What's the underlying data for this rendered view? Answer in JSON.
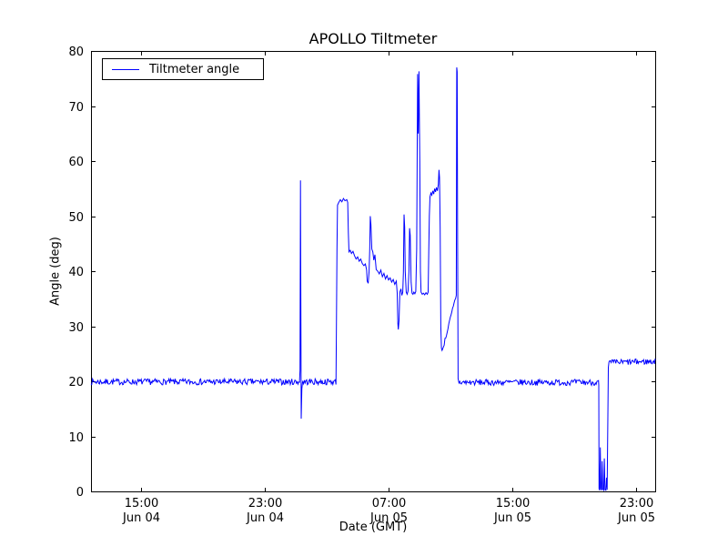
{
  "figure": {
    "background": "#ffffff"
  },
  "chart_data": {
    "type": "line",
    "title": "APOLLO Tiltmeter",
    "xlabel": "Date (GMT)",
    "ylabel": "Angle (deg)",
    "legend": [
      {
        "label": "Tiltmeter angle",
        "color": "#0000ff"
      }
    ],
    "legend_position": "upper left",
    "line_color": "#0000ff",
    "axis_color": "#000000",
    "grid": false,
    "x_unit": "hours since Jun 04 00:00 GMT",
    "xlim": [
      11.75,
      48.25
    ],
    "ylim": [
      0,
      80
    ],
    "yticks": [
      0,
      10,
      20,
      30,
      40,
      50,
      60,
      70,
      80
    ],
    "xticks": [
      {
        "h": 15,
        "line1": "15:00",
        "line2": "Jun 04"
      },
      {
        "h": 23,
        "line1": "23:00",
        "line2": "Jun 04"
      },
      {
        "h": 31,
        "line1": "07:00",
        "line2": "Jun 05"
      },
      {
        "h": 39,
        "line1": "15:00",
        "line2": "Jun 05"
      },
      {
        "h": 47,
        "line1": "23:00",
        "line2": "Jun 05"
      }
    ],
    "noise_seed": 7,
    "segments": [
      {
        "kind": "noisy",
        "x0": 11.75,
        "x1": 25.24,
        "y": 19.9,
        "amp": 0.55
      },
      {
        "kind": "path",
        "points": [
          [
            25.27,
            22.0
          ],
          [
            25.3,
            56.5
          ],
          [
            25.32,
            40.0
          ],
          [
            25.35,
            13.2
          ],
          [
            25.39,
            18.6
          ],
          [
            25.43,
            19.8
          ]
        ]
      },
      {
        "kind": "noisy",
        "x0": 25.45,
        "x1": 27.6,
        "y": 19.9,
        "amp": 0.55
      },
      {
        "kind": "path",
        "points": [
          [
            27.63,
            30.0
          ],
          [
            27.66,
            44.0
          ],
          [
            27.7,
            52.0
          ],
          [
            27.78,
            52.5
          ],
          [
            27.88,
            53.0
          ],
          [
            27.98,
            52.6
          ],
          [
            28.08,
            53.2
          ],
          [
            28.18,
            52.8
          ],
          [
            28.3,
            53.0
          ],
          [
            28.36,
            52.5
          ],
          [
            28.4,
            47.0
          ],
          [
            28.44,
            43.5
          ],
          [
            28.52,
            43.8
          ],
          [
            28.6,
            43.2
          ],
          [
            28.7,
            43.6
          ],
          [
            28.8,
            42.8
          ],
          [
            28.9,
            42.2
          ],
          [
            29.0,
            42.6
          ],
          [
            29.1,
            41.8
          ],
          [
            29.2,
            42.2
          ],
          [
            29.3,
            41.4
          ],
          [
            29.4,
            41.0
          ],
          [
            29.5,
            41.3
          ],
          [
            29.58,
            40.2
          ],
          [
            29.62,
            38.2
          ],
          [
            29.68,
            37.8
          ],
          [
            29.74,
            40.0
          ],
          [
            29.78,
            44.0
          ],
          [
            29.82,
            50.0
          ],
          [
            29.86,
            48.5
          ],
          [
            29.92,
            44.0
          ],
          [
            29.98,
            43.5
          ],
          [
            30.05,
            42.0
          ],
          [
            30.12,
            43.0
          ],
          [
            30.2,
            40.3
          ],
          [
            30.3,
            40.0
          ],
          [
            30.4,
            39.5
          ],
          [
            30.5,
            40.2
          ],
          [
            30.6,
            39.0
          ],
          [
            30.7,
            39.6
          ],
          [
            30.8,
            38.6
          ],
          [
            30.9,
            39.2
          ],
          [
            31.0,
            38.4
          ],
          [
            31.1,
            38.8
          ],
          [
            31.2,
            38.0
          ],
          [
            31.3,
            38.5
          ],
          [
            31.4,
            37.6
          ],
          [
            31.5,
            38.2
          ],
          [
            31.56,
            36.0
          ],
          [
            31.6,
            30.5
          ],
          [
            31.63,
            29.4
          ],
          [
            31.68,
            31.0
          ],
          [
            31.73,
            36.2
          ],
          [
            31.8,
            36.8
          ],
          [
            31.86,
            35.6
          ],
          [
            31.92,
            36.2
          ],
          [
            31.96,
            39.8
          ],
          [
            32.0,
            50.3
          ],
          [
            32.04,
            48.0
          ],
          [
            32.08,
            40.0
          ],
          [
            32.14,
            36.2
          ],
          [
            32.2,
            35.8
          ],
          [
            32.26,
            36.4
          ],
          [
            32.32,
            40.0
          ],
          [
            32.36,
            47.8
          ],
          [
            32.4,
            46.5
          ],
          [
            32.46,
            38.0
          ],
          [
            32.52,
            36.0
          ],
          [
            32.58,
            35.8
          ],
          [
            32.64,
            36.2
          ],
          [
            32.7,
            35.9
          ],
          [
            32.76,
            36.3
          ],
          [
            32.82,
            44.0
          ],
          [
            32.88,
            75.8
          ],
          [
            32.92,
            65.0
          ],
          [
            32.97,
            76.3
          ],
          [
            33.02,
            60.0
          ],
          [
            33.06,
            40.0
          ],
          [
            33.1,
            36.2
          ],
          [
            33.18,
            35.8
          ],
          [
            33.26,
            36.0
          ],
          [
            33.34,
            35.7
          ],
          [
            33.42,
            36.1
          ],
          [
            33.5,
            35.8
          ],
          [
            33.56,
            36.2
          ],
          [
            33.6,
            44.0
          ],
          [
            33.64,
            50.0
          ],
          [
            33.68,
            53.5
          ],
          [
            33.74,
            54.2
          ],
          [
            33.8,
            53.8
          ],
          [
            33.86,
            54.6
          ],
          [
            33.92,
            54.0
          ],
          [
            33.98,
            55.0
          ],
          [
            34.04,
            54.4
          ],
          [
            34.1,
            55.2
          ],
          [
            34.16,
            54.6
          ],
          [
            34.22,
            55.8
          ],
          [
            34.26,
            58.4
          ],
          [
            34.3,
            57.0
          ],
          [
            34.34,
            48.0
          ],
          [
            34.38,
            30.0
          ],
          [
            34.42,
            26.0
          ],
          [
            34.46,
            25.6
          ]
        ]
      },
      {
        "kind": "noisy",
        "x0": 34.5,
        "x1": 35.34,
        "y": 25.8,
        "y1": 35.2,
        "amp": 0.4
      },
      {
        "kind": "path",
        "points": [
          [
            35.38,
            35.6
          ],
          [
            35.41,
            77.0
          ],
          [
            35.44,
            76.2
          ],
          [
            35.47,
            45.0
          ],
          [
            35.5,
            20.5
          ],
          [
            35.54,
            19.9
          ]
        ]
      },
      {
        "kind": "noisy",
        "x0": 35.56,
        "x1": 44.58,
        "y": 19.8,
        "amp": 0.55
      },
      {
        "kind": "path",
        "points": [
          [
            44.6,
            19.3
          ],
          [
            44.62,
            0.5
          ],
          [
            44.66,
            0.2
          ],
          [
            44.7,
            8.0
          ],
          [
            44.73,
            0.5
          ],
          [
            44.78,
            0.2
          ],
          [
            44.82,
            5.5
          ],
          [
            44.86,
            0.4
          ],
          [
            44.92,
            0.2
          ],
          [
            44.96,
            6.0
          ],
          [
            45.0,
            0.3
          ],
          [
            45.06,
            0.2
          ],
          [
            45.1,
            2.5
          ],
          [
            45.14,
            0.3
          ],
          [
            45.18,
            12.0
          ],
          [
            45.22,
            22.5
          ],
          [
            45.26,
            23.5
          ]
        ]
      },
      {
        "kind": "noisy",
        "x0": 45.3,
        "x1": 48.25,
        "y": 23.4,
        "y1": 23.6,
        "amp": 0.55
      }
    ]
  }
}
